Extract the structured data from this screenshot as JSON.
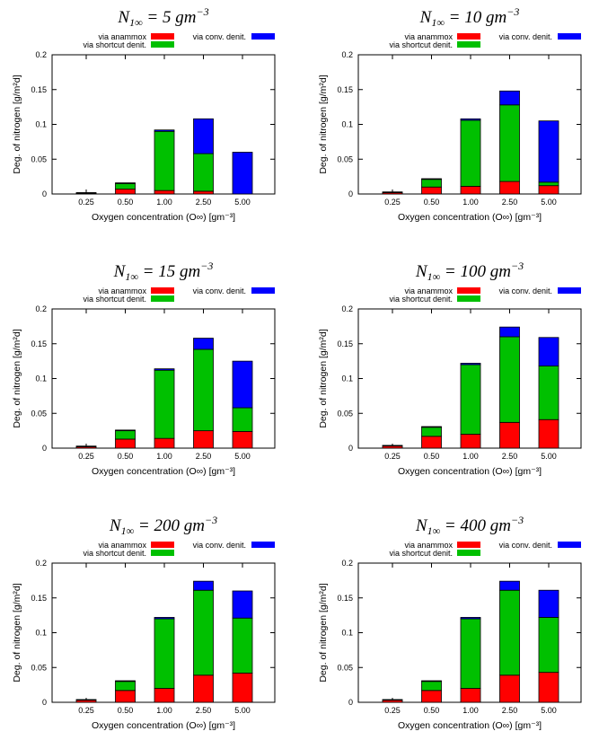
{
  "chart_data": [
    {
      "type": "bar",
      "stacked": true,
      "title": "N1∞ = 5 gm−3",
      "title_main": "N",
      "title_sub": "1∞",
      "title_rest": " = 5 ",
      "title_unit": "gm",
      "title_exp": "−3",
      "xlabel": "Oxygen concentration (O∞) [gm⁻³]",
      "ylabel": "Deg. of nitrogen [g/m²d]",
      "ylim": [
        0,
        0.2
      ],
      "yticks": [
        "0",
        "0.05",
        "0.1",
        "0.15",
        "0.2"
      ],
      "categories": [
        "0.25",
        "0.50",
        "1.00",
        "2.50",
        "5.00"
      ],
      "series": [
        {
          "name": "via anammox",
          "color": "#ff0000",
          "values": [
            0.001,
            0.007,
            0.005,
            0.004,
            0
          ]
        },
        {
          "name": "via shortcut denit.",
          "color": "#00c000",
          "values": [
            0.001,
            0.008,
            0.085,
            0.054,
            0
          ]
        },
        {
          "name": "via conv. denit.",
          "color": "#0000ff",
          "values": [
            0.0,
            0.001,
            0.002,
            0.05,
            0.06
          ]
        }
      ]
    },
    {
      "type": "bar",
      "stacked": true,
      "title": "N1∞ = 10 gm−3",
      "title_main": "N",
      "title_sub": "1∞",
      "title_rest": " = 10 ",
      "title_unit": "gm",
      "title_exp": "−3",
      "xlabel": "Oxygen concentration (O∞) [gm⁻³]",
      "ylabel": "Deg. of nitrogen [g/m²d]",
      "ylim": [
        0,
        0.2
      ],
      "yticks": [
        "0",
        "0.05",
        "0.1",
        "0.15",
        "0.2"
      ],
      "categories": [
        "0.25",
        "0.50",
        "1.00",
        "2.50",
        "5.00"
      ],
      "series": [
        {
          "name": "via anammox",
          "color": "#ff0000",
          "values": [
            0.002,
            0.01,
            0.011,
            0.018,
            0.012
          ]
        },
        {
          "name": "via shortcut denit.",
          "color": "#00c000",
          "values": [
            0.001,
            0.011,
            0.095,
            0.11,
            0.005
          ]
        },
        {
          "name": "via conv. denit.",
          "color": "#0000ff",
          "values": [
            0.0,
            0.001,
            0.002,
            0.02,
            0.088
          ]
        }
      ]
    },
    {
      "type": "bar",
      "stacked": true,
      "title": "N1∞ = 15 gm−3",
      "title_main": "N",
      "title_sub": "1∞",
      "title_rest": " = 15 ",
      "title_unit": "gm",
      "title_exp": "−3",
      "xlabel": "Oxygen concentration (O∞) [gm⁻³]",
      "ylabel": "Deg. of nitrogen [g/m²d]",
      "ylim": [
        0,
        0.2
      ],
      "yticks": [
        "0",
        "0.05",
        "0.1",
        "0.15",
        "0.2"
      ],
      "categories": [
        "0.25",
        "0.50",
        "1.00",
        "2.50",
        "5.00"
      ],
      "series": [
        {
          "name": "via anammox",
          "color": "#ff0000",
          "values": [
            0.002,
            0.013,
            0.014,
            0.025,
            0.024
          ]
        },
        {
          "name": "via shortcut denit.",
          "color": "#00c000",
          "values": [
            0.001,
            0.012,
            0.098,
            0.117,
            0.034
          ]
        },
        {
          "name": "via conv. denit.",
          "color": "#0000ff",
          "values": [
            0.0,
            0.001,
            0.002,
            0.016,
            0.067
          ]
        }
      ]
    },
    {
      "type": "bar",
      "stacked": true,
      "title": "N1∞ = 100 gm−3",
      "title_main": "N",
      "title_sub": "1∞",
      "title_rest": " = 100 ",
      "title_unit": "gm",
      "title_exp": "−3",
      "xlabel": "Oxygen concentration (O∞) [gm⁻³]",
      "ylabel": "Deg. of nitrogen [g/m²d]",
      "ylim": [
        0,
        0.2
      ],
      "yticks": [
        "0",
        "0.05",
        "0.1",
        "0.15",
        "0.2"
      ],
      "categories": [
        "0.25",
        "0.50",
        "1.00",
        "2.50",
        "5.00"
      ],
      "series": [
        {
          "name": "via anammox",
          "color": "#ff0000",
          "values": [
            0.003,
            0.017,
            0.02,
            0.037,
            0.041
          ]
        },
        {
          "name": "via shortcut denit.",
          "color": "#00c000",
          "values": [
            0.001,
            0.013,
            0.1,
            0.123,
            0.077
          ]
        },
        {
          "name": "via conv. denit.",
          "color": "#0000ff",
          "values": [
            0.0,
            0.001,
            0.002,
            0.014,
            0.041
          ]
        }
      ]
    },
    {
      "type": "bar",
      "stacked": true,
      "title": "N1∞ = 200 gm−3",
      "title_main": "N",
      "title_sub": "1∞",
      "title_rest": " = 200 ",
      "title_unit": "gm",
      "title_exp": "−3",
      "xlabel": "Oxygen concentration (O∞) [gm⁻³]",
      "ylabel": "Deg. of nitrogen [g/m²d]",
      "ylim": [
        0,
        0.2
      ],
      "yticks": [
        "0",
        "0.05",
        "0.1",
        "0.15",
        "0.2"
      ],
      "categories": [
        "0.25",
        "0.50",
        "1.00",
        "2.50",
        "5.00"
      ],
      "series": [
        {
          "name": "via anammox",
          "color": "#ff0000",
          "values": [
            0.003,
            0.017,
            0.02,
            0.039,
            0.042
          ]
        },
        {
          "name": "via shortcut denit.",
          "color": "#00c000",
          "values": [
            0.001,
            0.013,
            0.1,
            0.122,
            0.079
          ]
        },
        {
          "name": "via conv. denit.",
          "color": "#0000ff",
          "values": [
            0.0,
            0.001,
            0.002,
            0.013,
            0.039
          ]
        }
      ]
    },
    {
      "type": "bar",
      "stacked": true,
      "title": "N1∞ = 400 gm−3",
      "title_main": "N",
      "title_sub": "1∞",
      "title_rest": " = 400 ",
      "title_unit": "gm",
      "title_exp": "−3",
      "xlabel": "Oxygen concentration (O∞) [gm⁻³]",
      "ylabel": "Deg. of nitrogen [g/m²d]",
      "ylim": [
        0,
        0.2
      ],
      "yticks": [
        "0",
        "0.05",
        "0.1",
        "0.15",
        "0.2"
      ],
      "categories": [
        "0.25",
        "0.50",
        "1.00",
        "2.50",
        "5.00"
      ],
      "series": [
        {
          "name": "via anammox",
          "color": "#ff0000",
          "values": [
            0.003,
            0.017,
            0.02,
            0.039,
            0.043
          ]
        },
        {
          "name": "via shortcut denit.",
          "color": "#00c000",
          "values": [
            0.001,
            0.013,
            0.1,
            0.122,
            0.079
          ]
        },
        {
          "name": "via conv. denit.",
          "color": "#0000ff",
          "values": [
            0.0,
            0.001,
            0.002,
            0.013,
            0.039
          ]
        }
      ]
    }
  ]
}
